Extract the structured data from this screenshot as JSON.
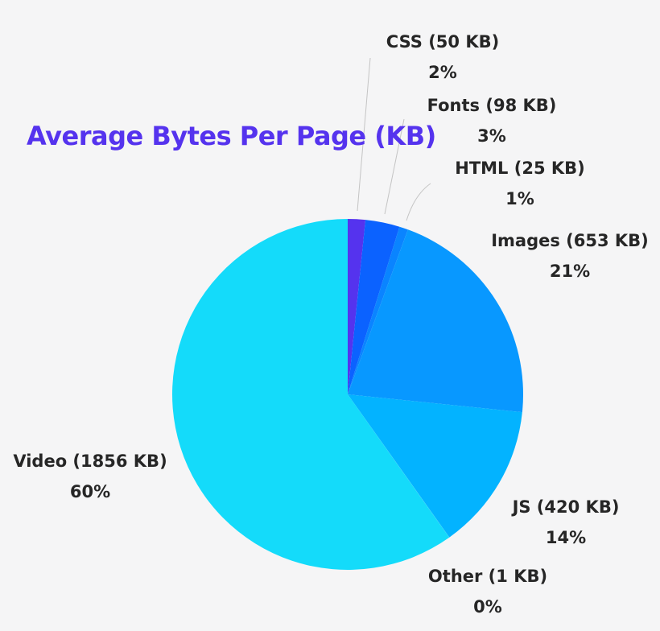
{
  "chart_data": {
    "type": "pie",
    "title": "Average Bytes Per Page (KB)",
    "start_angle_deg": 0,
    "direction": "clockwise",
    "slices": [
      {
        "name": "CSS",
        "value": 50,
        "percent_label": "2%",
        "label": "CSS (50 KB)",
        "color": "#5533ee"
      },
      {
        "name": "Fonts",
        "value": 98,
        "percent_label": "3%",
        "label": "Fonts (98 KB)",
        "color": "#0b62ff"
      },
      {
        "name": "HTML",
        "value": 25,
        "percent_label": "1%",
        "label": "HTML (25 KB)",
        "color": "#0a84ff"
      },
      {
        "name": "Images",
        "value": 653,
        "percent_label": "21%",
        "label": "Images (653 KB)",
        "color": "#0898ff"
      },
      {
        "name": "JS",
        "value": 420,
        "percent_label": "14%",
        "label": "JS (420 KB)",
        "color": "#03b3ff"
      },
      {
        "name": "Other",
        "value": 1,
        "percent_label": "0%",
        "label": "Other (1 KB)",
        "color": "#0cc8fc"
      },
      {
        "name": "Video",
        "value": 1856,
        "percent_label": "60%",
        "label": "Video (1856 KB)",
        "color": "#14dbfa"
      }
    ],
    "units": "KB",
    "legend": "none (direct labels)"
  },
  "colors": {
    "background": "#f5f5f6",
    "title": "#5533ee",
    "label_text": "#262626",
    "leader_line": "#bdbdbd"
  }
}
